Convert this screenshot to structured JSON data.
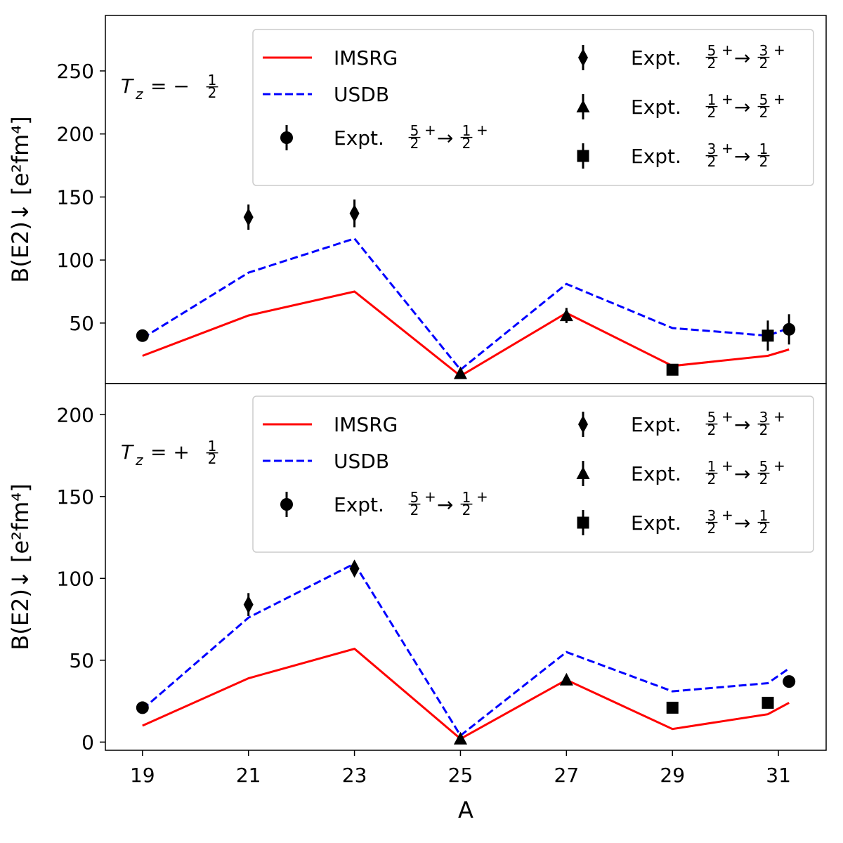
{
  "figure": {
    "xlabel": "A",
    "x_ticks": [
      "19",
      "21",
      "23",
      "25",
      "27",
      "29",
      "31"
    ]
  },
  "legend": {
    "imsrg": "IMSRG",
    "usdb": "USDB",
    "expt_prefix": "Expt.",
    "t52_12": "5/2+ → 1/2+",
    "t52_32": "5/2+ → 3/2+",
    "t12_52": "1/2+ → 5/2+",
    "t32_12": "3/2+ → 1/2"
  },
  "colors": {
    "imsrg": "#ff0000",
    "usdb": "#0000ff",
    "expt": "#000000"
  },
  "chart_data": [
    {
      "type": "line",
      "panel": "top",
      "annotation": "T_z = −1/2",
      "xlabel": "",
      "ylabel": "B(E2)↓ [e²fm⁴]",
      "xlim": [
        18.3,
        31.9
      ],
      "ylim": [
        2,
        294
      ],
      "yticks": [
        "50",
        "100",
        "150",
        "200",
        "250"
      ],
      "series": [
        {
          "name": "IMSRG",
          "x": [
            19,
            21,
            23,
            25,
            27,
            29,
            30.8,
            31.2
          ],
          "y": [
            24,
            56,
            75,
            8,
            58,
            16,
            24,
            29
          ]
        },
        {
          "name": "USDB",
          "x": [
            19,
            21,
            23,
            25,
            27,
            29,
            30.8,
            31.2
          ],
          "y": [
            38,
            90,
            117,
            13,
            81,
            46,
            40,
            46
          ]
        },
        {
          "name": "Expt. 5/2+ → 1/2+",
          "marker": "circle",
          "x": [
            19,
            31.2
          ],
          "y": [
            40,
            45
          ],
          "err": [
            2,
            12
          ]
        },
        {
          "name": "Expt. 5/2+ → 3/2+",
          "marker": "diamond",
          "x": [
            21,
            23
          ],
          "y": [
            134,
            137
          ],
          "err": [
            10,
            11
          ]
        },
        {
          "name": "Expt. 1/2+ → 5/2+",
          "marker": "triangle",
          "x": [
            25,
            27
          ],
          "y": [
            10,
            56
          ],
          "err": [
            1,
            6
          ]
        },
        {
          "name": "Expt. 3/2+ → 1/2",
          "marker": "square",
          "x": [
            29,
            30.8
          ],
          "y": [
            13,
            40
          ],
          "err": [
            1,
            12
          ]
        }
      ]
    },
    {
      "type": "line",
      "panel": "bottom",
      "annotation": "T_z = +1/2",
      "xlabel": "A",
      "ylabel": "B(E2)↓ [e²fm⁴]",
      "xlim": [
        18.3,
        31.9
      ],
      "ylim": [
        -5,
        219
      ],
      "yticks": [
        "0",
        "50",
        "100",
        "150",
        "200"
      ],
      "series": [
        {
          "name": "IMSRG",
          "x": [
            19,
            21,
            23,
            25,
            27,
            29,
            30.8,
            31.2
          ],
          "y": [
            10,
            39,
            57,
            2,
            38,
            8,
            17,
            24
          ]
        },
        {
          "name": "USDB",
          "x": [
            19,
            21,
            23,
            25,
            27,
            29,
            30.8,
            31.2
          ],
          "y": [
            20,
            76,
            109,
            4,
            55,
            31,
            36,
            45
          ]
        },
        {
          "name": "Expt. 5/2+ → 1/2+",
          "marker": "circle",
          "x": [
            19,
            31.2
          ],
          "y": [
            21,
            37
          ],
          "err": [
            1,
            1
          ]
        },
        {
          "name": "Expt. 5/2+ → 3/2+",
          "marker": "diamond",
          "x": [
            21,
            23
          ],
          "y": [
            84,
            106
          ],
          "err": [
            7,
            4
          ]
        },
        {
          "name": "Expt. 1/2+ → 5/2+",
          "marker": "triangle",
          "x": [
            25,
            27
          ],
          "y": [
            2,
            38
          ],
          "err": [
            1,
            1
          ]
        },
        {
          "name": "Expt. 3/2+ → 1/2",
          "marker": "square",
          "x": [
            29,
            30.8
          ],
          "y": [
            21,
            24
          ],
          "err": [
            1,
            1
          ]
        }
      ]
    }
  ]
}
